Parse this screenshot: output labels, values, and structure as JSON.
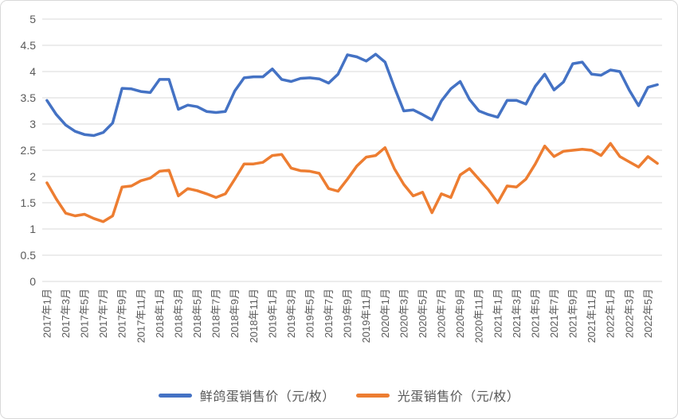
{
  "chart_data": {
    "type": "line",
    "title": "",
    "xlabel": "",
    "ylabel": "",
    "grid": "horizontal",
    "legend_position": "bottom",
    "gridline_color": "#d9d9d9",
    "axis_text_color": "#595959",
    "points_per_x_label": 2,
    "x_tick_labels": [
      "2017年1月",
      "2017年3月",
      "2017年5月",
      "2017年7月",
      "2017年9月",
      "2017年11月",
      "2018年1月",
      "2018年3月",
      "2018年5月",
      "2018年7月",
      "2018年9月",
      "2018年11月",
      "2019年1月",
      "2019年3月",
      "2019年5月",
      "2019年7月",
      "2019年9月",
      "2019年11月",
      "2020年1月",
      "2020年3月",
      "2020年5月",
      "2020年7月",
      "2020年9月",
      "2020年11月",
      "2021年1月",
      "2021年3月",
      "2021年5月",
      "2021年7月",
      "2021年9月",
      "2021年11月",
      "2022年1月",
      "2022年3月",
      "2022年5月"
    ],
    "y_axis": {
      "min": 0,
      "max": 5,
      "step": 0.5,
      "tick_labels": [
        "5",
        "4.5",
        "4",
        "3.5",
        "3",
        "2.5",
        "2",
        "1.5",
        "1",
        "0.5",
        "0"
      ]
    },
    "series": [
      {
        "name": "鲜鸽蛋销售价（元/枚）",
        "color": "#4472c4",
        "values": [
          3.45,
          3.18,
          2.98,
          2.86,
          2.8,
          2.78,
          2.84,
          3.02,
          3.68,
          3.67,
          3.62,
          3.6,
          3.85,
          3.85,
          3.28,
          3.36,
          3.33,
          3.24,
          3.22,
          3.24,
          3.63,
          3.88,
          3.9,
          3.9,
          4.05,
          3.85,
          3.81,
          3.87,
          3.88,
          3.86,
          3.78,
          3.95,
          4.32,
          4.28,
          4.2,
          4.33,
          4.18,
          3.7,
          3.25,
          3.27,
          3.18,
          3.08,
          3.44,
          3.67,
          3.81,
          3.47,
          3.25,
          3.18,
          3.13,
          3.45,
          3.45,
          3.38,
          3.72,
          3.95,
          3.65,
          3.8,
          4.15,
          4.18,
          3.95,
          3.93,
          4.03,
          4.0,
          3.65,
          3.35,
          3.7,
          3.75
        ]
      },
      {
        "name": "光蛋销售价（元/枚）",
        "color": "#ed7d31",
        "values": [
          1.88,
          1.57,
          1.3,
          1.25,
          1.28,
          1.2,
          1.14,
          1.25,
          1.8,
          1.82,
          1.92,
          1.97,
          2.1,
          2.12,
          1.63,
          1.77,
          1.73,
          1.67,
          1.6,
          1.67,
          1.95,
          2.24,
          2.24,
          2.27,
          2.4,
          2.42,
          2.16,
          2.11,
          2.1,
          2.06,
          1.77,
          1.72,
          1.95,
          2.2,
          2.37,
          2.4,
          2.55,
          2.15,
          1.85,
          1.63,
          1.7,
          1.31,
          1.67,
          1.6,
          2.03,
          2.15,
          1.95,
          1.75,
          1.5,
          1.82,
          1.8,
          1.95,
          2.24,
          2.58,
          2.38,
          2.48,
          2.5,
          2.52,
          2.5,
          2.4,
          2.63,
          2.38,
          2.28,
          2.18,
          2.38,
          2.25
        ]
      }
    ]
  }
}
